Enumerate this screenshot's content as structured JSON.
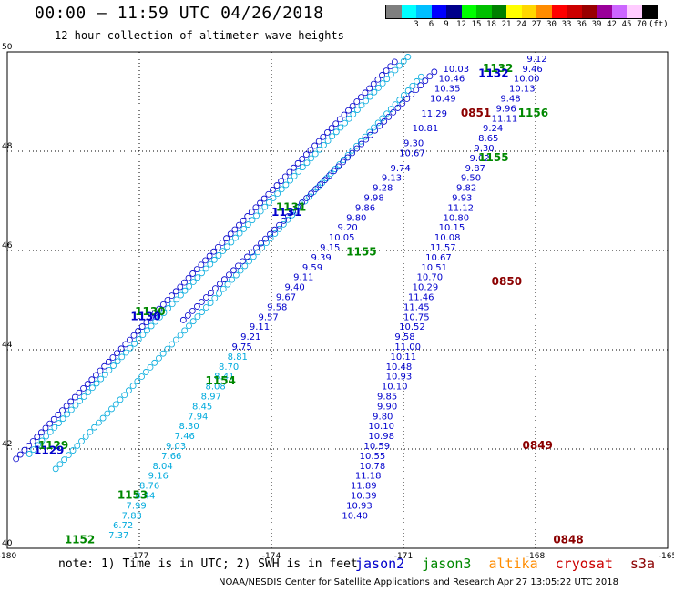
{
  "header": {
    "title": "00:00 – 11:59 UTC 04/26/2018",
    "subtitle": "12 hour collection of altimeter wave heights"
  },
  "legend": {
    "unit": "(ft)",
    "swatches": [
      {
        "color": "#7f7f7f",
        "label": ""
      },
      {
        "color": "#00ffff",
        "label": "3"
      },
      {
        "color": "#00bfff",
        "label": "6"
      },
      {
        "color": "#0000ff",
        "label": "9"
      },
      {
        "color": "#00008b",
        "label": "12"
      },
      {
        "color": "#00ff00",
        "label": "15"
      },
      {
        "color": "#00c000",
        "label": "18"
      },
      {
        "color": "#008000",
        "label": "21"
      },
      {
        "color": "#ffff00",
        "label": "24"
      },
      {
        "color": "#ffd700",
        "label": "27"
      },
      {
        "color": "#ff8c00",
        "label": "30"
      },
      {
        "color": "#ff0000",
        "label": "33"
      },
      {
        "color": "#cc0000",
        "label": "36"
      },
      {
        "color": "#990000",
        "label": "39"
      },
      {
        "color": "#990099",
        "label": "42"
      },
      {
        "color": "#cc66ff",
        "label": "45"
      },
      {
        "color": "#ffccff",
        "label": "70"
      },
      {
        "color": "#000000",
        "label": ""
      }
    ]
  },
  "axes": {
    "lon_ticks": [
      -180,
      -177,
      -174,
      -171,
      -168,
      -165
    ],
    "lat_ticks": [
      40,
      42,
      44,
      46,
      48,
      50
    ],
    "lon_range": [
      -180,
      -165
    ],
    "lat_range": [
      40,
      50
    ]
  },
  "colors": {
    "jason2": "#0000cc",
    "jason3": "#008800",
    "altika": "#ff8c00",
    "cryosat": "#cc0000",
    "s3a": "#8b0000",
    "light_track": "#00aadd"
  },
  "tracks": {
    "jason2_east": [
      {
        "lat": 49.8,
        "lon": -168.2,
        "v": "9.12"
      },
      {
        "lat": 49.6,
        "lon": -168.3,
        "v": "9.46"
      },
      {
        "lat": 49.4,
        "lon": -168.5,
        "v": "10.00"
      },
      {
        "lat": 49.2,
        "lon": -168.6,
        "v": "10.13"
      },
      {
        "lat": 49.0,
        "lon": -168.8,
        "v": "9.48"
      },
      {
        "lat": 48.8,
        "lon": -168.9,
        "v": "9.96"
      },
      {
        "lat": 48.6,
        "lon": -169.0,
        "v": "11.11"
      },
      {
        "lat": 48.4,
        "lon": -169.2,
        "v": "9.24"
      },
      {
        "lat": 48.2,
        "lon": -169.3,
        "v": "8.65"
      },
      {
        "lat": 48.0,
        "lon": -169.4,
        "v": "9.30"
      },
      {
        "lat": 47.8,
        "lon": -169.5,
        "v": "9.02"
      },
      {
        "lat": 47.6,
        "lon": -169.6,
        "v": "9.87"
      },
      {
        "lat": 47.4,
        "lon": -169.7,
        "v": "9.50"
      },
      {
        "lat": 47.2,
        "lon": -169.8,
        "v": "9.82"
      },
      {
        "lat": 47.0,
        "lon": -169.9,
        "v": "9.93"
      },
      {
        "lat": 46.8,
        "lon": -170.0,
        "v": "11.12"
      },
      {
        "lat": 46.6,
        "lon": -170.1,
        "v": "10.80"
      },
      {
        "lat": 46.4,
        "lon": -170.2,
        "v": "10.15"
      },
      {
        "lat": 46.2,
        "lon": -170.3,
        "v": "10.08"
      },
      {
        "lat": 46.0,
        "lon": -170.4,
        "v": "11.57"
      },
      {
        "lat": 45.8,
        "lon": -170.5,
        "v": "10.67"
      },
      {
        "lat": 45.6,
        "lon": -170.6,
        "v": "10.51"
      },
      {
        "lat": 45.4,
        "lon": -170.7,
        "v": "10.70"
      },
      {
        "lat": 45.2,
        "lon": -170.8,
        "v": "10.29"
      },
      {
        "lat": 45.0,
        "lon": -170.9,
        "v": "11.46"
      },
      {
        "lat": 44.8,
        "lon": -171.0,
        "v": "11.45"
      },
      {
        "lat": 44.6,
        "lon": -171.0,
        "v": "10.75"
      },
      {
        "lat": 44.4,
        "lon": -171.1,
        "v": "10.52"
      },
      {
        "lat": 44.2,
        "lon": -171.2,
        "v": "9.58"
      },
      {
        "lat": 44.0,
        "lon": -171.2,
        "v": "11.00"
      },
      {
        "lat": 43.8,
        "lon": -171.3,
        "v": "10.11"
      },
      {
        "lat": 43.6,
        "lon": -171.4,
        "v": "10.48"
      },
      {
        "lat": 43.4,
        "lon": -171.4,
        "v": "10.93"
      },
      {
        "lat": 43.2,
        "lon": -171.5,
        "v": "10.10"
      },
      {
        "lat": 43.0,
        "lon": -171.6,
        "v": "9.85"
      },
      {
        "lat": 42.8,
        "lon": -171.6,
        "v": "9.90"
      },
      {
        "lat": 42.6,
        "lon": -171.7,
        "v": "9.80"
      },
      {
        "lat": 42.4,
        "lon": -171.8,
        "v": "10.10"
      },
      {
        "lat": 42.2,
        "lon": -171.8,
        "v": "10.98"
      },
      {
        "lat": 42.0,
        "lon": -171.9,
        "v": "10.59"
      },
      {
        "lat": 41.8,
        "lon": -172.0,
        "v": "10.55"
      },
      {
        "lat": 41.6,
        "lon": -172.0,
        "v": "10.78"
      },
      {
        "lat": 41.4,
        "lon": -172.1,
        "v": "11.18"
      },
      {
        "lat": 41.2,
        "lon": -172.2,
        "v": "11.89"
      },
      {
        "lat": 41.0,
        "lon": -172.2,
        "v": "10.39"
      },
      {
        "lat": 40.8,
        "lon": -172.3,
        "v": "10.93"
      },
      {
        "lat": 40.6,
        "lon": -172.4,
        "v": "10.40"
      }
    ],
    "jason2_mid": [
      {
        "lat": 49.6,
        "lon": -170.1,
        "v": "10.03"
      },
      {
        "lat": 49.4,
        "lon": -170.2,
        "v": "10.46"
      },
      {
        "lat": 49.2,
        "lon": -170.3,
        "v": "10.35"
      },
      {
        "lat": 49.0,
        "lon": -170.4,
        "v": "10.49"
      },
      {
        "lat": 48.7,
        "lon": -170.6,
        "v": "11.29"
      },
      {
        "lat": 48.4,
        "lon": -170.8,
        "v": "10.81"
      },
      {
        "lat": 48.1,
        "lon": -171.0,
        "v": "9.30"
      },
      {
        "lat": 47.9,
        "lon": -171.1,
        "v": "10.67"
      },
      {
        "lat": 47.6,
        "lon": -171.3,
        "v": "9.74"
      },
      {
        "lat": 47.4,
        "lon": -171.5,
        "v": "9.13"
      },
      {
        "lat": 47.2,
        "lon": -171.7,
        "v": "9.28"
      },
      {
        "lat": 47.0,
        "lon": -171.9,
        "v": "9.98"
      },
      {
        "lat": 46.8,
        "lon": -172.1,
        "v": "9.86"
      },
      {
        "lat": 46.6,
        "lon": -172.3,
        "v": "9.80"
      },
      {
        "lat": 46.4,
        "lon": -172.5,
        "v": "9.20"
      },
      {
        "lat": 46.2,
        "lon": -172.7,
        "v": "10.05"
      },
      {
        "lat": 46.0,
        "lon": -172.9,
        "v": "9.15"
      },
      {
        "lat": 45.8,
        "lon": -173.1,
        "v": "9.39"
      },
      {
        "lat": 45.6,
        "lon": -173.3,
        "v": "9.59"
      },
      {
        "lat": 45.4,
        "lon": -173.5,
        "v": "9.11"
      },
      {
        "lat": 45.2,
        "lon": -173.7,
        "v": "9.40"
      },
      {
        "lat": 45.0,
        "lon": -173.9,
        "v": "9.67"
      },
      {
        "lat": 44.8,
        "lon": -174.1,
        "v": "9.58"
      },
      {
        "lat": 44.6,
        "lon": -174.3,
        "v": "9.57"
      },
      {
        "lat": 44.4,
        "lon": -174.5,
        "v": "9.11"
      },
      {
        "lat": 44.2,
        "lon": -174.7,
        "v": "9.21"
      },
      {
        "lat": 44.0,
        "lon": -174.9,
        "v": "9.75"
      }
    ],
    "light_mid": [
      {
        "lat": 43.8,
        "lon": -175.0,
        "v": "8.81"
      },
      {
        "lat": 43.6,
        "lon": -175.2,
        "v": "8.70"
      },
      {
        "lat": 43.4,
        "lon": -175.3,
        "v": "8.41"
      },
      {
        "lat": 43.2,
        "lon": -175.5,
        "v": "8.08"
      },
      {
        "lat": 43.0,
        "lon": -175.6,
        "v": "8.97"
      },
      {
        "lat": 42.8,
        "lon": -175.8,
        "v": "8.45"
      },
      {
        "lat": 42.6,
        "lon": -175.9,
        "v": "7.94"
      },
      {
        "lat": 42.4,
        "lon": -176.1,
        "v": "8.30"
      },
      {
        "lat": 42.2,
        "lon": -176.2,
        "v": "7.46"
      },
      {
        "lat": 42.0,
        "lon": -176.4,
        "v": "9.03"
      },
      {
        "lat": 41.8,
        "lon": -176.5,
        "v": "7.66"
      },
      {
        "lat": 41.6,
        "lon": -176.7,
        "v": "8.04"
      },
      {
        "lat": 41.4,
        "lon": -176.8,
        "v": "9.16"
      },
      {
        "lat": 41.2,
        "lon": -177.0,
        "v": "8.76"
      },
      {
        "lat": 41.0,
        "lon": -177.1,
        "v": "8.44"
      },
      {
        "lat": 40.8,
        "lon": -177.3,
        "v": "7.99"
      },
      {
        "lat": 40.6,
        "lon": -177.4,
        "v": "7.83"
      },
      {
        "lat": 40.4,
        "lon": -177.6,
        "v": "6.72"
      },
      {
        "lat": 40.2,
        "lon": -177.7,
        "v": "7.37"
      }
    ],
    "time_labels": [
      {
        "lat": 49.6,
        "lon": -169.2,
        "v": "1132",
        "sat": "jason3"
      },
      {
        "lat": 49.5,
        "lon": -169.3,
        "v": "1132",
        "sat": "jason2"
      },
      {
        "lat": 48.7,
        "lon": -169.7,
        "v": "0851",
        "sat": "s3a"
      },
      {
        "lat": 48.7,
        "lon": -168.4,
        "v": "1156",
        "sat": "jason3"
      },
      {
        "lat": 47.8,
        "lon": -169.3,
        "v": "1155",
        "sat": "jason3"
      },
      {
        "lat": 46.8,
        "lon": -173.9,
        "v": "1131",
        "sat": "jason3"
      },
      {
        "lat": 46.7,
        "lon": -174.0,
        "v": "1131",
        "sat": "jason2"
      },
      {
        "lat": 45.9,
        "lon": -172.3,
        "v": "1155",
        "sat": "jason3"
      },
      {
        "lat": 45.3,
        "lon": -169.0,
        "v": "0850",
        "sat": "s3a"
      },
      {
        "lat": 44.7,
        "lon": -177.1,
        "v": "1130",
        "sat": "jason3"
      },
      {
        "lat": 44.6,
        "lon": -177.2,
        "v": "1130",
        "sat": "jason2"
      },
      {
        "lat": 43.3,
        "lon": -175.5,
        "v": "1154",
        "sat": "jason3"
      },
      {
        "lat": 42.0,
        "lon": -179.3,
        "v": "1129",
        "sat": "jason3"
      },
      {
        "lat": 41.9,
        "lon": -179.4,
        "v": "1129",
        "sat": "jason2"
      },
      {
        "lat": 42.0,
        "lon": -168.3,
        "v": "0849",
        "sat": "s3a"
      },
      {
        "lat": 41.0,
        "lon": -177.5,
        "v": "1153",
        "sat": "jason3"
      },
      {
        "lat": 40.1,
        "lon": -167.6,
        "v": "0848",
        "sat": "s3a"
      },
      {
        "lat": 40.1,
        "lon": -178.7,
        "v": "1152",
        "sat": "jason3"
      }
    ]
  },
  "note": "note: 1) Time is in UTC; 2) SWH is in feet",
  "satellites": {
    "jason2": "jason2",
    "jason3": "jason3",
    "altika": "altika",
    "cryosat": "cryosat",
    "s3a": "s3a"
  },
  "footer": "NOAA/NESDIS Center for Satellite Applications and Research    Apr 27 13:05:22 UTC 2018"
}
